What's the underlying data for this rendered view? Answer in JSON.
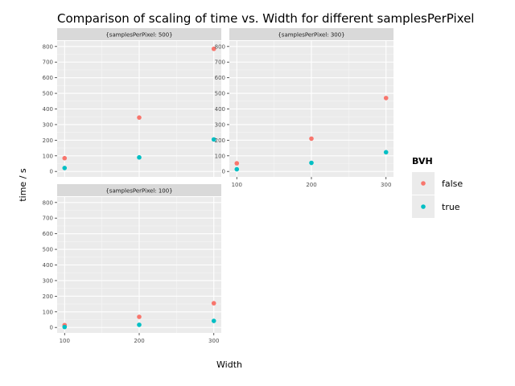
{
  "chart_data": {
    "type": "scatter",
    "title": "Comparison of scaling of time vs. Width for different samplesPerPixel",
    "xlabel": "Width",
    "ylabel": "time / s",
    "x_ticks": [
      100,
      200,
      300
    ],
    "y_ticks": [
      0,
      100,
      200,
      300,
      400,
      500,
      600,
      700,
      800
    ],
    "ylim": [
      -35,
      835
    ],
    "xlim": [
      90,
      310
    ],
    "grid": true,
    "legend": {
      "title": "BVH",
      "placement": "right",
      "entries": [
        {
          "label": "false",
          "color": "#f8766d"
        },
        {
          "label": "true",
          "color": "#00bfc4"
        }
      ]
    },
    "panels": [
      {
        "label": "{samplesPerPixel: 500}",
        "series": [
          {
            "bvh": "false",
            "x": [
              100,
              200,
              300
            ],
            "y": [
              85,
              345,
              785
            ]
          },
          {
            "bvh": "true",
            "x": [
              100,
              200,
              300
            ],
            "y": [
              22,
              90,
              205
            ]
          }
        ]
      },
      {
        "label": "{samplesPerPixel: 300}",
        "series": [
          {
            "bvh": "false",
            "x": [
              100,
              200,
              300
            ],
            "y": [
              52,
              210,
              470
            ]
          },
          {
            "bvh": "true",
            "x": [
              100,
              200,
              300
            ],
            "y": [
              14,
              55,
              123
            ]
          }
        ]
      },
      {
        "label": "{samplesPerPixel: 100}",
        "series": [
          {
            "bvh": "false",
            "x": [
              100,
              200,
              300
            ],
            "y": [
              15,
              68,
              155
            ]
          },
          {
            "bvh": "true",
            "x": [
              100,
              200,
              300
            ],
            "y": [
              3,
              17,
              42
            ]
          }
        ]
      }
    ]
  }
}
